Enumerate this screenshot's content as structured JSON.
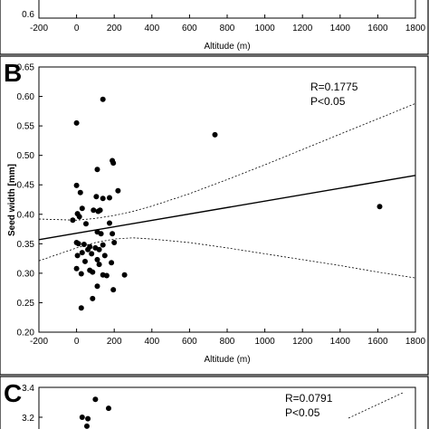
{
  "chart_data": [
    {
      "type": "scatter",
      "panel": "A",
      "x_tick_labels": [
        "-200",
        "0",
        "200",
        "400",
        "600",
        "800",
        "1000",
        "1200",
        "1400",
        "1600",
        "1800"
      ],
      "y_tick_labels": [
        "0.6"
      ],
      "xlabel": "Altitude (m)",
      "xlim": [
        -200,
        1800
      ],
      "partially_visible": true
    },
    {
      "type": "scatter",
      "panel": "B",
      "letter": "B",
      "xlabel": "Altitude (m)",
      "ylabel": "Seed width [mm]",
      "xlim": [
        -200,
        1800
      ],
      "ylim": [
        0.2,
        0.65
      ],
      "x_tick_labels": [
        "-200",
        "0",
        "200",
        "400",
        "600",
        "800",
        "1000",
        "1200",
        "1400",
        "1600",
        "1800"
      ],
      "y_tick_labels": [
        "0.20",
        "0.25",
        "0.30",
        "0.35",
        "0.40",
        "0.45",
        "0.50",
        "0.55",
        "0.60",
        "0.65"
      ],
      "annotation": [
        "R=0.1775",
        "P<0.05"
      ],
      "regression_line": {
        "x": [
          -200,
          1800
        ],
        "y": [
          0.357,
          0.466
        ]
      },
      "confidence_band": {
        "x": [
          -200,
          0,
          100,
          200,
          300,
          400,
          600,
          800,
          1000,
          1200,
          1400,
          1600,
          1800
        ],
        "upper": [
          0.392,
          0.39,
          0.393,
          0.398,
          0.405,
          0.414,
          0.435,
          0.459,
          0.484,
          0.51,
          0.536,
          0.562,
          0.588
        ],
        "lower": [
          0.321,
          0.343,
          0.352,
          0.358,
          0.36,
          0.358,
          0.352,
          0.343,
          0.333,
          0.323,
          0.313,
          0.302,
          0.292
        ]
      },
      "points": [
        {
          "x": 0,
          "y": 0.555
        },
        {
          "x": 140,
          "y": 0.595
        },
        {
          "x": 735,
          "y": 0.535
        },
        {
          "x": 1610,
          "y": 0.413
        },
        {
          "x": 190,
          "y": 0.491
        },
        {
          "x": 195,
          "y": 0.487
        },
        {
          "x": 110,
          "y": 0.476
        },
        {
          "x": 0,
          "y": 0.449
        },
        {
          "x": 20,
          "y": 0.437
        },
        {
          "x": 105,
          "y": 0.43
        },
        {
          "x": 140,
          "y": 0.427
        },
        {
          "x": 175,
          "y": 0.428
        },
        {
          "x": 220,
          "y": 0.44
        },
        {
          "x": 30,
          "y": 0.41
        },
        {
          "x": 90,
          "y": 0.407
        },
        {
          "x": 115,
          "y": 0.405
        },
        {
          "x": 125,
          "y": 0.407
        },
        {
          "x": 5,
          "y": 0.401
        },
        {
          "x": 15,
          "y": 0.396
        },
        {
          "x": -20,
          "y": 0.39
        },
        {
          "x": 50,
          "y": 0.384
        },
        {
          "x": 175,
          "y": 0.385
        },
        {
          "x": 110,
          "y": 0.37
        },
        {
          "x": 130,
          "y": 0.367
        },
        {
          "x": 190,
          "y": 0.367
        },
        {
          "x": 0,
          "y": 0.352
        },
        {
          "x": 10,
          "y": 0.35
        },
        {
          "x": 40,
          "y": 0.349
        },
        {
          "x": 70,
          "y": 0.345
        },
        {
          "x": 140,
          "y": 0.348
        },
        {
          "x": 200,
          "y": 0.352
        },
        {
          "x": 100,
          "y": 0.343
        },
        {
          "x": 120,
          "y": 0.34
        },
        {
          "x": 60,
          "y": 0.34
        },
        {
          "x": 30,
          "y": 0.335
        },
        {
          "x": 80,
          "y": 0.333
        },
        {
          "x": 5,
          "y": 0.33
        },
        {
          "x": 150,
          "y": 0.33
        },
        {
          "x": 45,
          "y": 0.32
        },
        {
          "x": 110,
          "y": 0.323
        },
        {
          "x": 120,
          "y": 0.315
        },
        {
          "x": 185,
          "y": 0.318
        },
        {
          "x": 0,
          "y": 0.308
        },
        {
          "x": 70,
          "y": 0.305
        },
        {
          "x": 85,
          "y": 0.302
        },
        {
          "x": 25,
          "y": 0.299
        },
        {
          "x": 140,
          "y": 0.297
        },
        {
          "x": 255,
          "y": 0.297
        },
        {
          "x": 160,
          "y": 0.296
        },
        {
          "x": 110,
          "y": 0.278
        },
        {
          "x": 195,
          "y": 0.272
        },
        {
          "x": 85,
          "y": 0.257
        },
        {
          "x": 25,
          "y": 0.241
        }
      ]
    },
    {
      "type": "scatter",
      "panel": "C",
      "letter": "C",
      "y_tick_labels": [
        "3.4",
        "3.2"
      ],
      "annotation": [
        "R=0.0791",
        "P<0.05"
      ],
      "partially_visible": true,
      "points": [
        {
          "x": 100,
          "y": 3.32
        },
        {
          "x": 170,
          "y": 3.26
        },
        {
          "x": 30,
          "y": 3.2
        },
        {
          "x": 60,
          "y": 3.19
        },
        {
          "x": 55,
          "y": 3.14
        }
      ]
    }
  ]
}
